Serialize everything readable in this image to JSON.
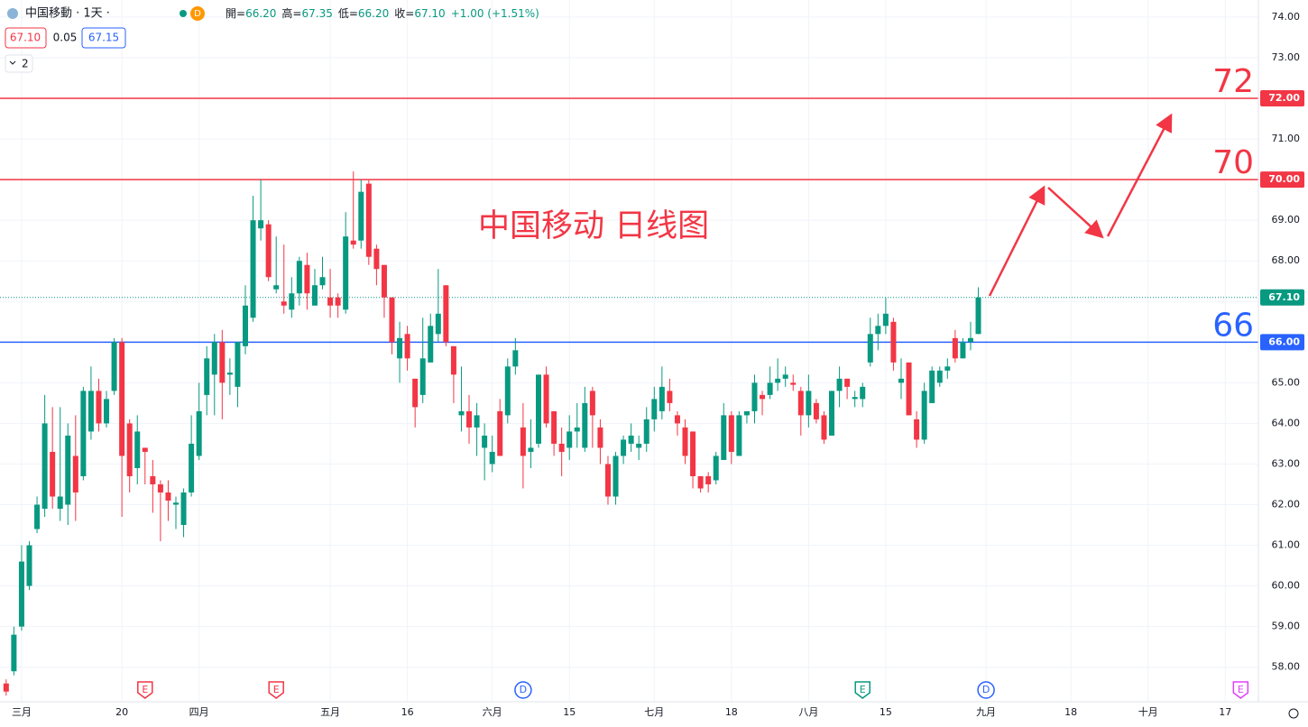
{
  "header": {
    "symbol": "中国移動 · 1天 ·",
    "badge": "D",
    "fields": [
      {
        "k": "開=",
        "v": "66.20"
      },
      {
        "k": "高=",
        "v": "67.35"
      },
      {
        "k": "低=",
        "v": "66.20"
      },
      {
        "k": "收=",
        "v": "67.10"
      }
    ],
    "change": "+1.00 (+1.51%)",
    "bid": "67.10",
    "spread": "0.05",
    "ask": "67.15",
    "collapse": "2"
  },
  "chart_data": {
    "type": "candlestick",
    "title": "中国移动 日线图",
    "up_color": "#089981",
    "down_color": "#f23645",
    "grid": true,
    "xlim": [
      -0.8,
      162.3
    ],
    "ylim": [
      57.15,
      74.42
    ],
    "yticks": [
      {
        "value": 58,
        "label": "58.00"
      },
      {
        "value": 59,
        "label": "59.00"
      },
      {
        "value": 60,
        "label": "60.00"
      },
      {
        "value": 61,
        "label": "61.00"
      },
      {
        "value": 62,
        "label": "62.00"
      },
      {
        "value": 63,
        "label": "63.00"
      },
      {
        "value": 64,
        "label": "64.00"
      },
      {
        "value": 65,
        "label": "65.00"
      },
      {
        "value": 66,
        "label": "66.00"
      },
      {
        "value": 67,
        "label": "67.00"
      },
      {
        "value": 68,
        "label": "68.00"
      },
      {
        "value": 69,
        "label": "69.00"
      },
      {
        "value": 70,
        "label": "70.00"
      },
      {
        "value": 71,
        "label": "71.00"
      },
      {
        "value": 72,
        "label": "72.00"
      },
      {
        "value": 73,
        "label": "73.00"
      },
      {
        "value": 74,
        "label": "74.00"
      }
    ],
    "xticks": [
      {
        "value": 2,
        "label": "三月"
      },
      {
        "value": 15,
        "label": "20"
      },
      {
        "value": 25,
        "label": "四月"
      },
      {
        "value": 42,
        "label": "五月"
      },
      {
        "value": 52,
        "label": "16"
      },
      {
        "value": 63,
        "label": "六月"
      },
      {
        "value": 73,
        "label": "15"
      },
      {
        "value": 84,
        "label": "七月"
      },
      {
        "value": 94,
        "label": "18"
      },
      {
        "value": 104,
        "label": "八月"
      },
      {
        "value": 114,
        "label": "15"
      },
      {
        "value": 127,
        "label": "九月"
      },
      {
        "value": 138,
        "label": "18"
      },
      {
        "value": 148,
        "label": "十月"
      },
      {
        "value": 158,
        "label": "17"
      }
    ],
    "levels": [
      {
        "value": 72,
        "label": "72.00",
        "note": "72",
        "color": "#f23645",
        "style": "solid"
      },
      {
        "value": 70,
        "label": "70.00",
        "note": "70",
        "color": "#f23645",
        "style": "solid"
      },
      {
        "value": 66,
        "label": "66.00",
        "note": "66",
        "color": "#2962ff",
        "style": "solid"
      },
      {
        "value": 67.1,
        "label": "67.10",
        "color": "#089981",
        "style": "dotted"
      }
    ],
    "events": [
      {
        "x": 18,
        "label": "E",
        "color": "#f23645"
      },
      {
        "x": 35,
        "label": "E",
        "color": "#f23645"
      },
      {
        "x": 67,
        "label": "D",
        "color": "#2962ff"
      },
      {
        "x": 111,
        "label": "E",
        "color": "#089981"
      },
      {
        "x": 127,
        "label": "D",
        "color": "#2962ff"
      },
      {
        "x": 160,
        "label": "E",
        "color": "#e040fb"
      }
    ],
    "x": [
      0,
      1,
      2,
      3,
      4,
      5,
      6,
      7,
      8,
      9,
      10,
      11,
      12,
      13,
      14,
      15,
      16,
      17,
      18,
      19,
      20,
      21,
      22,
      23,
      24,
      25,
      26,
      27,
      28,
      29,
      30,
      31,
      32,
      33,
      34,
      35,
      36,
      37,
      38,
      39,
      40,
      41,
      42,
      43,
      44,
      45,
      46,
      47,
      48,
      49,
      50,
      51,
      52,
      53,
      54,
      55,
      56,
      57,
      58,
      59,
      60,
      61,
      62,
      63,
      64,
      65,
      66,
      67,
      68,
      69,
      70,
      71,
      72,
      73,
      74,
      75,
      76,
      77,
      78,
      79,
      80,
      81,
      82,
      83,
      84,
      85,
      86,
      87,
      88,
      89,
      90,
      91,
      92,
      93,
      94,
      95,
      96,
      97,
      98,
      99,
      100,
      101,
      102,
      103,
      104,
      105,
      106,
      107,
      108,
      109,
      110,
      111,
      112,
      113,
      114,
      115,
      116,
      117,
      118,
      119,
      120,
      121,
      122,
      123,
      124,
      125,
      126
    ],
    "ohlc": [
      [
        57.6,
        57.7,
        57.3,
        57.4
      ],
      [
        57.9,
        59.0,
        57.8,
        58.8
      ],
      [
        59.0,
        61.0,
        58.9,
        60.6
      ],
      [
        60.0,
        61.1,
        59.9,
        61.0
      ],
      [
        61.4,
        62.2,
        61.3,
        62.0
      ],
      [
        61.9,
        64.7,
        61.7,
        64.0
      ],
      [
        63.3,
        64.4,
        61.9,
        62.2
      ],
      [
        61.9,
        64.4,
        61.6,
        62.2
      ],
      [
        62.0,
        64.0,
        61.5,
        63.7
      ],
      [
        63.2,
        64.2,
        61.6,
        62.3
      ],
      [
        62.7,
        64.9,
        62.6,
        64.8
      ],
      [
        63.8,
        65.4,
        63.6,
        64.8
      ],
      [
        64.8,
        65.1,
        63.8,
        64.0
      ],
      [
        64.0,
        64.8,
        63.9,
        64.6
      ],
      [
        64.8,
        66.1,
        64.7,
        66.0
      ],
      [
        66.0,
        66.1,
        61.7,
        63.2
      ],
      [
        64.0,
        64.1,
        62.3,
        62.7
      ],
      [
        62.9,
        64.2,
        62.5,
        63.8
      ],
      [
        63.4,
        63.4,
        62.5,
        63.3
      ],
      [
        62.7,
        63.1,
        61.8,
        62.5
      ],
      [
        62.5,
        62.6,
        61.1,
        62.3
      ],
      [
        62.3,
        62.6,
        61.6,
        62.1
      ],
      [
        62.0,
        62.2,
        61.4,
        62.05
      ],
      [
        61.5,
        62.4,
        61.2,
        62.3
      ],
      [
        62.3,
        64.2,
        62.2,
        63.5
      ],
      [
        63.2,
        65.0,
        63.1,
        64.3
      ],
      [
        64.7,
        65.9,
        64.2,
        65.6
      ],
      [
        65.2,
        66.2,
        64.2,
        66.0
      ],
      [
        66.0,
        66.3,
        64.1,
        65.0
      ],
      [
        65.2,
        65.6,
        64.7,
        65.25
      ],
      [
        64.9,
        66.0,
        64.4,
        66.0
      ],
      [
        65.9,
        67.4,
        65.7,
        66.9
      ],
      [
        66.6,
        69.6,
        66.5,
        69.0
      ],
      [
        68.8,
        70.0,
        68.5,
        69.0
      ],
      [
        68.9,
        69.0,
        67.5,
        67.6
      ],
      [
        67.3,
        68.6,
        67.2,
        67.4
      ],
      [
        67.0,
        68.4,
        66.7,
        66.9
      ],
      [
        66.8,
        67.6,
        66.6,
        67.2
      ],
      [
        67.2,
        68.1,
        66.9,
        68.0
      ],
      [
        67.9,
        68.2,
        66.8,
        67.2
      ],
      [
        66.9,
        67.8,
        66.9,
        67.4
      ],
      [
        67.4,
        68.1,
        67.3,
        67.6
      ],
      [
        67.1,
        67.8,
        66.6,
        66.9
      ],
      [
        67.1,
        67.2,
        66.6,
        66.9
      ],
      [
        66.8,
        69.2,
        66.7,
        68.6
      ],
      [
        68.5,
        70.2,
        68.3,
        68.4
      ],
      [
        68.5,
        70.0,
        68.3,
        69.7
      ],
      [
        69.9,
        70.0,
        67.9,
        68.1
      ],
      [
        68.3,
        68.4,
        67.4,
        67.8
      ],
      [
        67.9,
        67.9,
        66.6,
        67.1
      ],
      [
        67.1,
        67.1,
        65.7,
        66.0
      ],
      [
        65.6,
        66.5,
        65.0,
        66.1
      ],
      [
        66.2,
        66.4,
        65.3,
        65.6
      ],
      [
        65.1,
        65.1,
        63.9,
        64.4
      ],
      [
        64.7,
        66.6,
        64.5,
        65.6
      ],
      [
        65.5,
        66.7,
        65.5,
        66.4
      ],
      [
        66.2,
        67.8,
        66.0,
        66.7
      ],
      [
        67.4,
        67.4,
        65.9,
        66.0
      ],
      [
        65.9,
        65.9,
        64.5,
        65.2
      ],
      [
        64.2,
        65.4,
        63.8,
        64.3
      ],
      [
        64.3,
        64.7,
        63.5,
        63.9
      ],
      [
        63.9,
        64.5,
        63.2,
        64.2
      ],
      [
        63.4,
        64.0,
        62.6,
        63.7
      ],
      [
        63.0,
        63.7,
        62.8,
        63.3
      ],
      [
        64.3,
        64.6,
        63.2,
        63.2
      ],
      [
        64.2,
        65.6,
        64.0,
        65.4
      ],
      [
        65.4,
        66.1,
        65.2,
        65.8
      ],
      [
        63.9,
        64.5,
        62.4,
        63.2
      ],
      [
        63.3,
        64.1,
        62.9,
        63.4
      ],
      [
        63.5,
        65.2,
        63.4,
        65.2
      ],
      [
        65.2,
        65.4,
        63.9,
        64.0
      ],
      [
        64.3,
        64.3,
        63.2,
        63.5
      ],
      [
        63.5,
        63.9,
        62.7,
        63.3
      ],
      [
        63.4,
        64.2,
        63.1,
        63.8
      ],
      [
        63.8,
        64.5,
        63.4,
        63.9
      ],
      [
        63.4,
        64.9,
        63.3,
        64.5
      ],
      [
        64.8,
        64.9,
        63.4,
        64.2
      ],
      [
        63.9,
        64.1,
        63.0,
        63.4
      ],
      [
        63.0,
        63.2,
        62.0,
        62.2
      ],
      [
        62.2,
        63.3,
        62.0,
        63.2
      ],
      [
        63.2,
        63.7,
        63.0,
        63.6
      ],
      [
        63.5,
        64.0,
        63.3,
        63.7
      ],
      [
        63.4,
        63.7,
        63.1,
        63.5
      ],
      [
        63.5,
        64.4,
        63.3,
        64.1
      ],
      [
        64.1,
        64.9,
        63.8,
        64.6
      ],
      [
        64.3,
        65.4,
        64.1,
        64.9
      ],
      [
        64.8,
        65.1,
        64.3,
        64.5
      ],
      [
        64.2,
        64.3,
        63.7,
        64.0
      ],
      [
        63.9,
        64.1,
        63.0,
        63.2
      ],
      [
        63.8,
        63.8,
        62.4,
        62.7
      ],
      [
        62.7,
        62.7,
        62.3,
        62.4
      ],
      [
        62.7,
        62.8,
        62.3,
        62.5
      ],
      [
        62.6,
        63.3,
        62.5,
        63.2
      ],
      [
        63.1,
        64.5,
        63.1,
        64.2
      ],
      [
        64.2,
        64.3,
        63.0,
        63.3
      ],
      [
        63.2,
        64.3,
        63.2,
        64.2
      ],
      [
        64.2,
        64.3,
        64.0,
        64.3
      ],
      [
        64.3,
        65.2,
        64.0,
        65.0
      ],
      [
        64.7,
        64.8,
        64.2,
        64.6
      ],
      [
        64.7,
        65.4,
        64.6,
        65.0
      ],
      [
        65.0,
        65.6,
        64.8,
        65.1
      ],
      [
        65.1,
        65.4,
        64.9,
        65.2
      ],
      [
        65.0,
        65.2,
        64.8,
        64.95
      ],
      [
        64.8,
        64.9,
        63.7,
        64.2
      ],
      [
        64.2,
        65.2,
        63.9,
        64.8
      ],
      [
        64.5,
        64.6,
        64.0,
        64.1
      ],
      [
        64.2,
        64.3,
        63.5,
        63.6
      ],
      [
        63.7,
        64.8,
        63.7,
        64.8
      ],
      [
        64.8,
        65.4,
        64.4,
        65.1
      ],
      [
        65.1,
        65.1,
        64.6,
        64.9
      ],
      [
        64.6,
        64.8,
        64.4,
        64.65
      ],
      [
        64.6,
        65.0,
        64.4,
        64.9
      ],
      [
        65.5,
        66.6,
        65.4,
        66.2
      ],
      [
        66.2,
        66.7,
        65.8,
        66.4
      ],
      [
        66.4,
        67.1,
        66.2,
        66.7
      ],
      [
        66.5,
        66.6,
        65.3,
        65.5
      ],
      [
        65.0,
        65.6,
        64.6,
        65.1
      ],
      [
        65.5,
        65.5,
        64.2,
        64.2
      ],
      [
        64.1,
        64.3,
        63.4,
        63.6
      ],
      [
        63.6,
        65.0,
        63.5,
        64.8
      ],
      [
        64.5,
        65.4,
        64.5,
        65.3
      ],
      [
        65.0,
        65.4,
        64.9,
        65.3
      ],
      [
        65.3,
        65.6,
        65.1,
        65.4
      ],
      [
        66.1,
        66.3,
        65.5,
        65.6
      ],
      [
        65.6,
        66.1,
        65.6,
        66.0
      ],
      [
        66.0,
        66.5,
        65.8,
        66.1
      ],
      [
        66.2,
        67.35,
        66.2,
        67.1
      ]
    ]
  }
}
